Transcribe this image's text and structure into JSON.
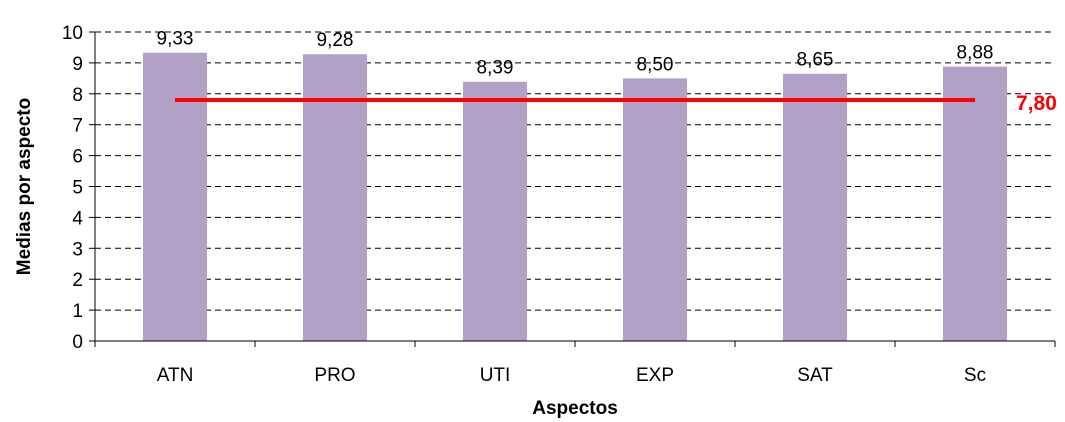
{
  "chart_data": {
    "type": "bar",
    "categories": [
      "ATN",
      "PRO",
      "UTI",
      "EXP",
      "SAT",
      "Sc"
    ],
    "values": [
      9.33,
      9.28,
      8.39,
      8.5,
      8.65,
      8.88
    ],
    "value_labels": [
      "9,33",
      "9,28",
      "8,39",
      "8,50",
      "8,65",
      "8,88"
    ],
    "xlabel": "Aspectos",
    "ylabel": "Medias por aspecto",
    "ylim": [
      0,
      10
    ],
    "yticks": [
      "0",
      "1",
      "2",
      "3",
      "4",
      "5",
      "6",
      "7",
      "8",
      "9",
      "10"
    ],
    "grid": "horizontal dashed",
    "reference_line": {
      "value": 7.8,
      "label": "7,80",
      "color": "#ff0000"
    },
    "bar_color": "#b1a1c7"
  }
}
